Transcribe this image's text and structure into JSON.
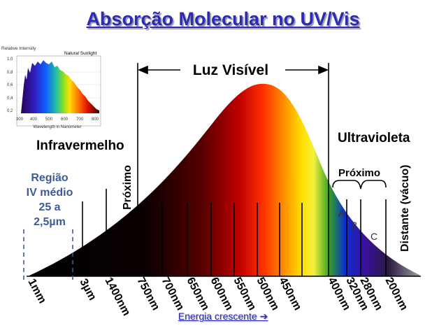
{
  "title": "Absorção Molecular  no UV/Vis",
  "inset": {
    "y_label": "Relative Intensity",
    "legend": "Natural Sunlight",
    "x_label": "Wavelength in Nanometer",
    "y_ticks": [
      "1,0",
      "0,8",
      "0,6",
      "0,4",
      "0,2"
    ],
    "x_ticks": [
      "300",
      "400",
      "500",
      "600",
      "700",
      "800"
    ]
  },
  "labels": {
    "visible": "Luz Visível",
    "infrared": "Infravermelho",
    "ultraviolet": "Ultravioleta",
    "near_ir": "Próximo",
    "near_uv": "Próximo",
    "far_uv": "Distante (vácuo)",
    "band_a": "A",
    "band_b": "B",
    "band_c": "C"
  },
  "region": {
    "line1": "Região",
    "line2": "IV médio",
    "line3": "25 a",
    "line4": "2,5µm"
  },
  "wavelength_ticks": [
    "1mm",
    "3µm",
    "1400nm",
    "750nm",
    "700nm",
    "650nm",
    "600nm",
    "550nm",
    "500nm",
    "450nm",
    "400nm",
    "320nm",
    "280nm",
    "200nm"
  ],
  "footer": {
    "text": "Energia crescente",
    "arrow": "➔"
  }
}
